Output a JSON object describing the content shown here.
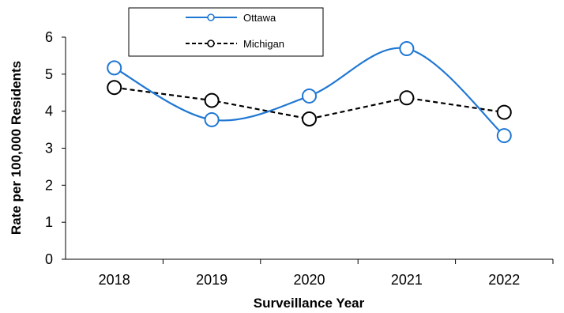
{
  "chart_data": {
    "type": "line",
    "title": "",
    "xlabel": "Surveillance Year",
    "ylabel": "Rate per 100,000 Residents",
    "categories": [
      "2018",
      "2019",
      "2020",
      "2021",
      "2022"
    ],
    "ylim": [
      0,
      6
    ],
    "yticks": [
      "0",
      "1",
      "2",
      "3",
      "4",
      "5",
      "6"
    ],
    "grid": false,
    "legend_position": "top-center",
    "series": [
      {
        "name": "Ottawa",
        "values": [
          5.17,
          3.77,
          4.41,
          5.69,
          3.34
        ],
        "color": "#1f77d4",
        "style": "solid",
        "smooth": true
      },
      {
        "name": "Michigan",
        "values": [
          4.64,
          4.29,
          3.79,
          4.36,
          3.97
        ],
        "color": "#000000",
        "style": "dashed",
        "smooth": false
      }
    ]
  }
}
